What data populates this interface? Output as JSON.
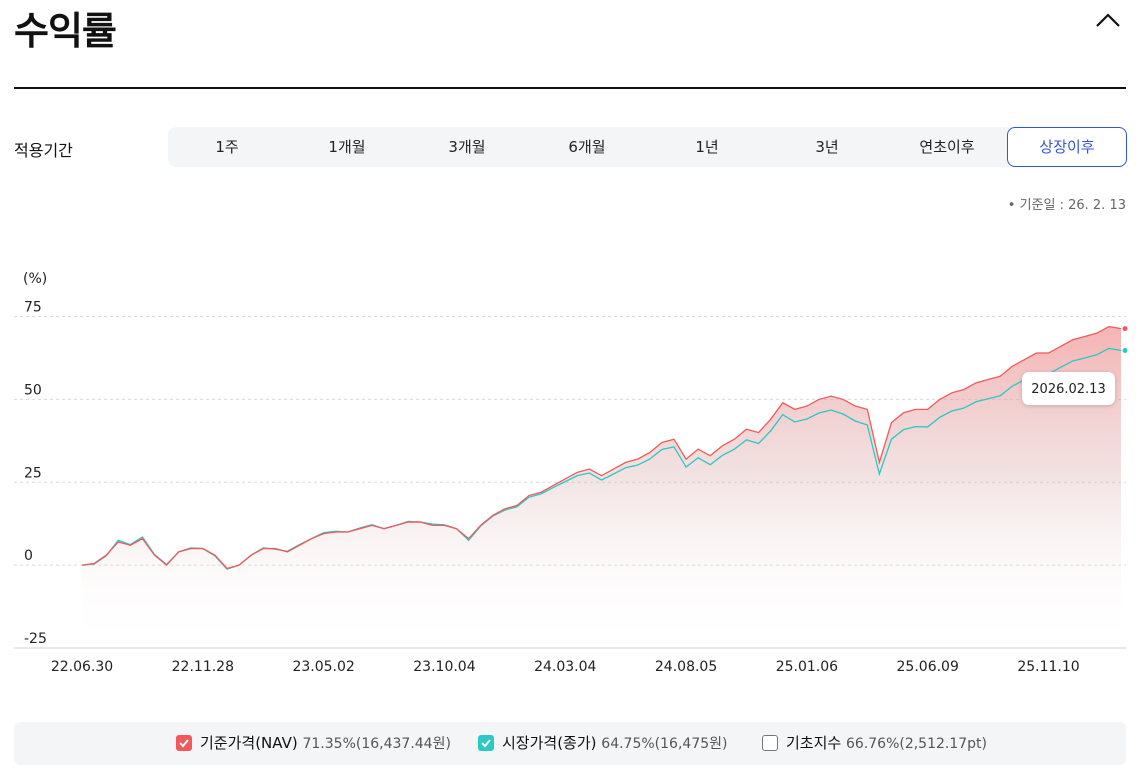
{
  "header": {
    "title": "수익률"
  },
  "period": {
    "label": "적용기간",
    "options": [
      "1주",
      "1개월",
      "3개월",
      "6개월",
      "1년",
      "3년",
      "연초이후",
      "상장이후"
    ],
    "selected": 7
  },
  "basis_date": "• 기준일 : 26. 2. 13",
  "chart_data": {
    "type": "line",
    "y_label": "(%)",
    "tooltip": "2026.02.13",
    "ylim": [
      -25,
      80
    ],
    "yticks": [
      75,
      50,
      25,
      0,
      -25
    ],
    "grid": true,
    "area": true,
    "categories": [
      "22.06.30",
      null,
      null,
      null,
      null,
      null,
      null,
      null,
      null,
      null,
      "22.11.28",
      null,
      null,
      null,
      null,
      null,
      null,
      null,
      null,
      null,
      "23.05.02",
      null,
      null,
      null,
      null,
      null,
      null,
      null,
      null,
      null,
      "23.10.04",
      null,
      null,
      null,
      null,
      null,
      null,
      null,
      null,
      null,
      "24.03.04",
      null,
      null,
      null,
      null,
      null,
      null,
      null,
      null,
      null,
      "24.08.05",
      null,
      null,
      null,
      null,
      null,
      null,
      null,
      null,
      null,
      "25.01.06",
      null,
      null,
      null,
      null,
      null,
      null,
      null,
      null,
      null,
      "25.06.09",
      null,
      null,
      null,
      null,
      null,
      null,
      null,
      null,
      null,
      "25.11.10",
      null,
      null,
      null,
      null,
      null,
      null
    ],
    "series": [
      {
        "name": "기준가격(NAV)",
        "summary": "71.35%(16,437.44원)",
        "color": "#f05a5a",
        "values": [
          0,
          0.5,
          3,
          7,
          6,
          8,
          3,
          0,
          4,
          5,
          5,
          3,
          -1,
          0,
          3,
          5,
          5,
          4,
          6,
          8,
          9.5,
          10,
          10,
          11,
          12,
          11,
          12,
          13,
          13,
          12,
          12,
          11,
          8,
          12,
          15,
          17,
          18,
          21,
          22,
          24,
          26,
          28,
          29,
          27,
          29,
          31,
          32,
          34,
          37,
          38,
          32,
          35,
          33,
          36,
          38,
          41,
          40,
          44,
          49,
          47,
          48,
          50,
          51,
          50,
          48,
          47,
          31,
          43,
          46,
          47,
          47,
          50,
          52,
          53,
          55,
          56,
          57,
          60,
          62,
          64,
          64,
          66,
          68,
          69,
          70,
          72,
          71.35
        ]
      },
      {
        "name": "시장가격(종가)",
        "summary": "64.75%(16,475원)",
        "color": "#2cc7c7",
        "values": [
          0,
          0.3,
          2.8,
          7.5,
          6.2,
          8.5,
          3.2,
          0.2,
          4,
          5.2,
          5,
          2.8,
          -1.2,
          0,
          3,
          5.2,
          4.8,
          4.2,
          6.2,
          8,
          9.8,
          10.2,
          10,
          11.2,
          12.2,
          11,
          12,
          13.2,
          13,
          12.4,
          12.2,
          11,
          7.5,
          11.8,
          14.8,
          16.6,
          17.6,
          20.5,
          21.5,
          23.4,
          25.2,
          27,
          27.8,
          25.7,
          27.5,
          29.4,
          30.2,
          32,
          34.9,
          35.7,
          29.6,
          32.4,
          30.3,
          33.1,
          35,
          37.8,
          36.7,
          40.5,
          45.4,
          43.2,
          44.1,
          45.9,
          46.8,
          45.6,
          43.5,
          42.3,
          27.5,
          38,
          40.9,
          41.8,
          41.7,
          44.6,
          46.5,
          47.4,
          49.3,
          50.2,
          51.1,
          54,
          55.9,
          57.8,
          57.7,
          59.7,
          61.6,
          62.5,
          63.5,
          65.4,
          64.75
        ]
      }
    ],
    "hidden_series": [
      {
        "name": "기초지수",
        "summary": "66.76%(2,512.17pt)"
      }
    ]
  }
}
